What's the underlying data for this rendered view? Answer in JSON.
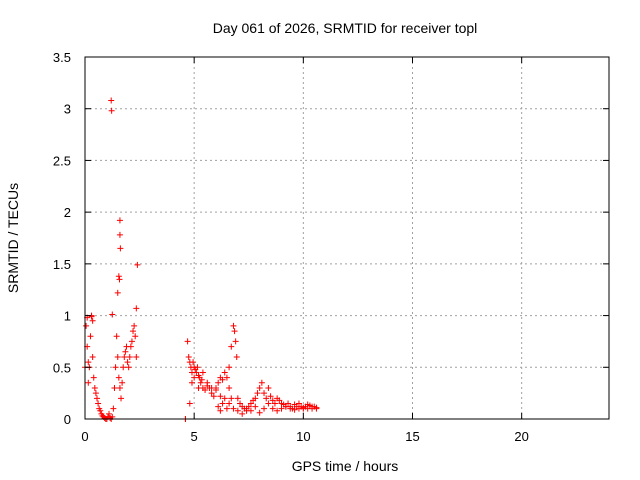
{
  "chart_data": {
    "type": "scatter",
    "title": "Day 061 of 2026, SRMTID for receiver topl",
    "xlabel": "GPS time / hours",
    "ylabel": "SRMTID / TECUs",
    "xlim": [
      0,
      24
    ],
    "ylim": [
      0,
      3.5
    ],
    "grid": true,
    "marker": "+",
    "xticks": [
      0,
      5,
      10,
      15,
      20
    ],
    "xtick_labels": [
      "0",
      "5",
      "10",
      "15",
      "20"
    ],
    "yticks": [
      0,
      0.5,
      1,
      1.5,
      2,
      2.5,
      3,
      3.5
    ],
    "ytick_labels": [
      "0",
      "0.5",
      "1",
      "1.5",
      "2",
      "2.5",
      "3",
      "3.5"
    ],
    "series": [
      {
        "name": "SRMTID",
        "color": "#ff0000",
        "x": [
          0.0,
          0.05,
          0.1,
          0.15,
          0.2,
          0.25,
          0.3,
          0.35,
          0.4,
          0.45,
          0.5,
          0.55,
          0.6,
          0.65,
          0.7,
          0.75,
          0.8,
          0.85,
          0.9,
          0.95,
          1.0,
          1.05,
          1.1,
          1.15,
          1.2,
          1.25,
          1.3,
          1.35,
          1.4,
          1.45,
          1.5,
          1.55,
          1.6,
          1.65,
          1.7,
          1.75,
          1.8,
          1.85,
          1.9,
          1.95,
          2.0,
          2.05,
          2.1,
          2.15,
          2.2,
          2.25,
          2.3,
          2.35,
          1.2,
          1.22,
          1.6,
          1.6,
          1.62,
          1.55,
          1.58,
          1.5,
          2.4,
          2.35,
          0.3,
          0.35,
          0.1,
          0.15,
          1.25,
          4.6,
          4.6,
          4.7,
          4.75,
          4.8,
          4.85,
          4.9,
          4.95,
          5.0,
          5.05,
          5.1,
          5.15,
          5.2,
          5.25,
          5.3,
          5.35,
          5.4,
          5.5,
          5.6,
          5.7,
          5.8,
          5.9,
          6.0,
          6.1,
          6.2,
          6.3,
          6.4,
          6.5,
          6.6,
          6.7,
          6.8,
          6.85,
          6.9,
          6.95,
          7.0,
          7.1,
          7.2,
          7.3,
          7.4,
          7.5,
          7.6,
          7.7,
          7.8,
          7.9,
          8.0,
          8.1,
          8.2,
          8.3,
          8.4,
          8.5,
          8.6,
          8.7,
          8.8,
          8.9,
          9.0,
          9.1,
          9.2,
          9.3,
          9.4,
          9.5,
          9.6,
          9.7,
          9.8,
          9.9,
          10.0,
          10.1,
          10.2,
          10.3,
          10.4,
          10.5,
          10.6,
          4.8,
          4.9,
          5.0,
          5.2,
          5.4,
          5.6,
          5.8,
          6.0,
          6.2,
          6.4,
          6.6,
          6.8,
          7.0,
          7.2,
          7.4,
          7.6,
          7.8,
          8.0,
          8.2,
          8.4,
          8.6,
          8.8,
          9.0,
          9.2,
          9.4,
          9.6,
          9.8,
          10.0,
          10.2,
          10.4,
          10.6,
          6.1,
          6.3,
          6.5,
          6.7,
          6.2,
          6.6
        ],
        "y": [
          0.5,
          0.9,
          0.7,
          0.35,
          0.5,
          0.8,
          1.0,
          0.6,
          0.4,
          0.3,
          0.25,
          0.2,
          0.15,
          0.1,
          0.08,
          0.05,
          0.03,
          0.02,
          0.01,
          0.0,
          0.0,
          0.02,
          0.05,
          0.01,
          0.0,
          0.02,
          0.1,
          0.3,
          0.5,
          0.8,
          0.6,
          0.4,
          0.3,
          0.2,
          0.35,
          0.5,
          0.6,
          0.65,
          0.7,
          0.55,
          0.5,
          0.6,
          0.7,
          0.75,
          0.85,
          0.9,
          0.8,
          0.6,
          3.08,
          2.98,
          1.92,
          1.78,
          1.65,
          1.38,
          1.35,
          1.22,
          1.49,
          1.07,
          0.99,
          0.95,
          0.98,
          0.55,
          1.01,
          0.0,
          0.0,
          0.75,
          0.6,
          0.55,
          0.5,
          0.45,
          0.55,
          0.5,
          0.48,
          0.45,
          0.5,
          0.42,
          0.4,
          0.35,
          0.38,
          0.3,
          0.28,
          0.32,
          0.3,
          0.25,
          0.22,
          0.3,
          0.35,
          0.4,
          0.38,
          0.45,
          0.4,
          0.5,
          0.7,
          0.9,
          0.85,
          0.75,
          0.6,
          0.2,
          0.15,
          0.12,
          0.1,
          0.08,
          0.12,
          0.15,
          0.18,
          0.2,
          0.25,
          0.3,
          0.35,
          0.25,
          0.2,
          0.3,
          0.22,
          0.18,
          0.15,
          0.2,
          0.18,
          0.15,
          0.14,
          0.12,
          0.15,
          0.12,
          0.1,
          0.14,
          0.12,
          0.15,
          0.12,
          0.1,
          0.12,
          0.14,
          0.13,
          0.1,
          0.12,
          0.11,
          0.15,
          0.35,
          0.4,
          0.3,
          0.45,
          0.35,
          0.3,
          0.28,
          0.22,
          0.2,
          0.15,
          0.1,
          0.08,
          0.05,
          0.1,
          0.08,
          0.12,
          0.06,
          0.1,
          0.15,
          0.1,
          0.08,
          0.1,
          0.12,
          0.1,
          0.09,
          0.1,
          0.11,
          0.1,
          0.12,
          0.1,
          0.12,
          0.15,
          0.1,
          0.2,
          0.08,
          0.3
        ]
      }
    ]
  }
}
